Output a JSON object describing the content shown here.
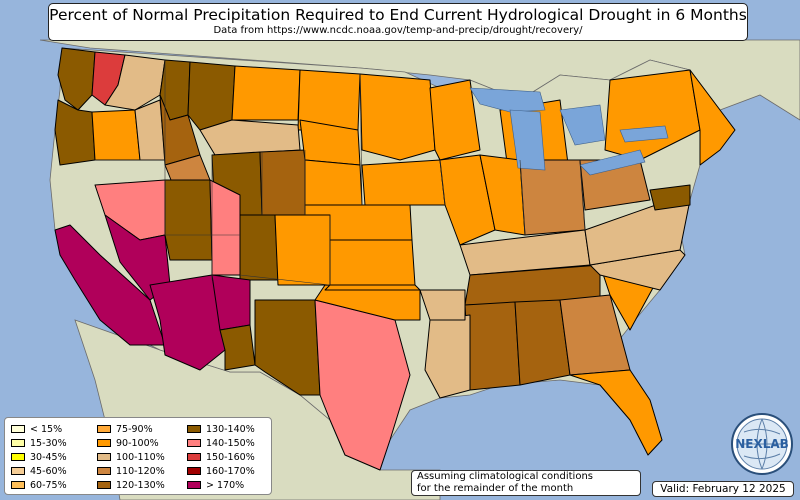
{
  "header": {
    "title": "Percent of Normal Precipitation Required to End Current Hydrological Drought in 6 Months",
    "subtitle": "Data from https://www.ncdc.noaa.gov/temp-and-precip/drought/recovery/"
  },
  "legend": {
    "items": [
      {
        "label": "< 15%",
        "color": "#ffffd9"
      },
      {
        "label": "15-30%",
        "color": "#ffffa6"
      },
      {
        "label": "30-45%",
        "color": "#ffff00"
      },
      {
        "label": "45-60%",
        "color": "#f5cd96"
      },
      {
        "label": "60-75%",
        "color": "#ffbf59"
      },
      {
        "label": "75-90%",
        "color": "#ffa938"
      },
      {
        "label": "90-100%",
        "color": "#ff9900"
      },
      {
        "label": "100-110%",
        "color": "#e2bb87"
      },
      {
        "label": "110-120%",
        "color": "#cd853f"
      },
      {
        "label": "120-130%",
        "color": "#a5630f"
      },
      {
        "label": "130-140%",
        "color": "#8b5a00"
      },
      {
        "label": "140-150%",
        "color": "#ff7f7f"
      },
      {
        "label": "150-160%",
        "color": "#dc3c3c"
      },
      {
        "label": "160-170%",
        "color": "#a00000"
      },
      {
        "label": "> 170%",
        "color": "#b0005a"
      }
    ]
  },
  "note": {
    "line1": "Assuming climatological conditions",
    "line2": "for the remainder of the month"
  },
  "valid": "Valid: February 12 2025",
  "logo": {
    "text": "NEXLAB",
    "icon": "globe-logo-icon"
  },
  "map": {
    "ocean_color": "#97b5dc",
    "land_color": "#d9dcc0",
    "lake_color": "#7aa5d9",
    "border_color": "#000000",
    "regions": [
      {
        "name": "wa-west",
        "category": "130-140%"
      },
      {
        "name": "wa-cascades",
        "category": "150-160%"
      },
      {
        "name": "wa-east",
        "category": "100-110%"
      },
      {
        "name": "or-west",
        "category": "130-140%"
      },
      {
        "name": "or-central",
        "category": "90-100%"
      },
      {
        "name": "or-east",
        "category": "100-110%"
      },
      {
        "name": "id-north",
        "category": "130-140%"
      },
      {
        "name": "id-central",
        "category": "120-130%"
      },
      {
        "name": "id-south",
        "category": "110-120%"
      },
      {
        "name": "mt-west",
        "category": "130-140%"
      },
      {
        "name": "mt-central",
        "category": "90-100%"
      },
      {
        "name": "mt-east",
        "category": "90-100%"
      },
      {
        "name": "mt-south",
        "category": "100-110%"
      },
      {
        "name": "wy-west",
        "category": "130-140%"
      },
      {
        "name": "wy-east",
        "category": "120-130%"
      },
      {
        "name": "nd-west",
        "category": "90-100%"
      },
      {
        "name": "sd-west",
        "category": "90-100%"
      },
      {
        "name": "ne",
        "category": "90-100%"
      },
      {
        "name": "ks",
        "category": "90-100%"
      },
      {
        "name": "ca",
        "category": "> 170%"
      },
      {
        "name": "nv-north",
        "category": "140-150%"
      },
      {
        "name": "nv-south",
        "category": "> 170%"
      },
      {
        "name": "ut-west",
        "category": "130-140%"
      },
      {
        "name": "ut-east",
        "category": "140-150%"
      },
      {
        "name": "co-west",
        "category": "130-140%"
      },
      {
        "name": "co-east",
        "category": "90-100%"
      },
      {
        "name": "az",
        "category": "> 170%"
      },
      {
        "name": "nm-north",
        "category": "> 170%"
      },
      {
        "name": "nm-south",
        "category": "130-140%"
      },
      {
        "name": "tx-west",
        "category": "130-140%"
      },
      {
        "name": "tx-central",
        "category": "140-150%"
      },
      {
        "name": "tx-north",
        "category": "90-100%"
      },
      {
        "name": "ok-west",
        "category": "90-100%"
      },
      {
        "name": "mn-east",
        "category": "90-100%"
      },
      {
        "name": "wi",
        "category": "90-100%"
      },
      {
        "name": "mi",
        "category": "90-100%"
      },
      {
        "name": "ia",
        "category": "90-100%"
      },
      {
        "name": "il",
        "category": "90-100%"
      },
      {
        "name": "in",
        "category": "90-100%"
      },
      {
        "name": "oh",
        "category": "110-120%"
      },
      {
        "name": "ky",
        "category": "100-110%"
      },
      {
        "name": "tn",
        "category": "120-130%"
      },
      {
        "name": "ms",
        "category": "120-130%"
      },
      {
        "name": "al",
        "category": "120-130%"
      },
      {
        "name": "ga",
        "category": "110-120%"
      },
      {
        "name": "sc",
        "category": "90-100%"
      },
      {
        "name": "nc",
        "category": "100-110%"
      },
      {
        "name": "va",
        "category": "100-110%"
      },
      {
        "name": "fl",
        "category": "90-100%"
      },
      {
        "name": "la",
        "category": "100-110%"
      },
      {
        "name": "ar-east",
        "category": "100-110%"
      },
      {
        "name": "ny",
        "category": "90-100%"
      },
      {
        "name": "pa",
        "category": "110-120%"
      },
      {
        "name": "ne-states",
        "category": "90-100%"
      },
      {
        "name": "md-de",
        "category": "130-140%"
      }
    ]
  }
}
